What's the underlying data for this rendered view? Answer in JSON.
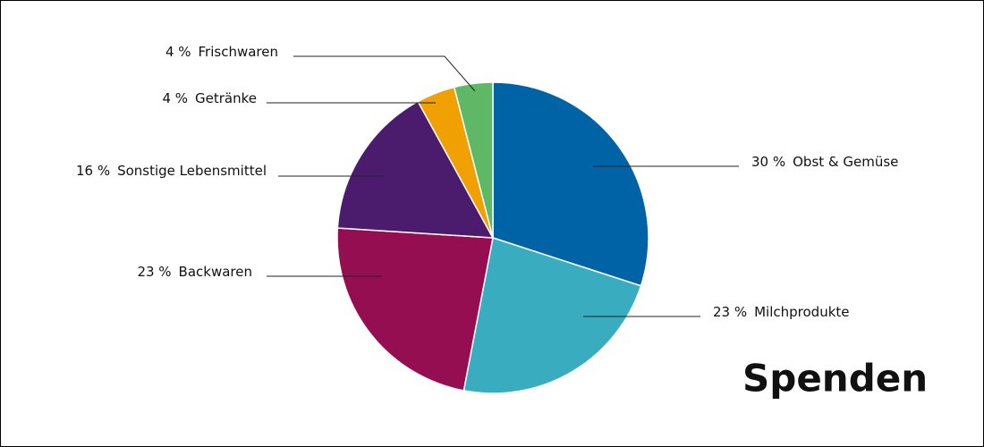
{
  "chart_data": {
    "type": "pie",
    "title": "Spenden",
    "categories": [
      "Obst & Gemüse",
      "Milchprodukte",
      "Backwaren",
      "Sonstige Lebensmittel",
      "Getränke",
      "Frischwaren"
    ],
    "values": [
      30,
      23,
      23,
      16,
      4,
      4
    ],
    "value_labels": [
      "30 %",
      "23 %",
      "23 %",
      "16 %",
      "4 %",
      "4 %"
    ],
    "colors": [
      "#0063a6",
      "#3aacbf",
      "#960e52",
      "#4b1c6e",
      "#f0a000",
      "#5fb866"
    ]
  }
}
